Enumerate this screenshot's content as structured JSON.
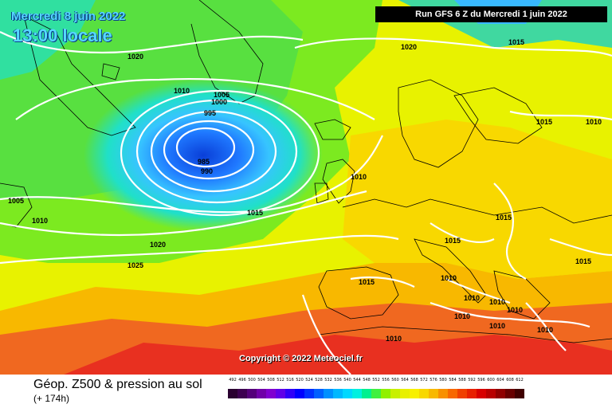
{
  "header": {
    "date": "Mercredi 8 juin 2022",
    "time": "13:00 locale",
    "run": "Run GFS 6 Z du Mercredi 1 juin 2022"
  },
  "copyright": "Copyright © 2022 Meteociel.fr",
  "footer": {
    "title": "Géop. Z500 & pression au sol",
    "subtitle": "(+ 174h)"
  },
  "legend": {
    "values": [
      "492",
      "496",
      "500",
      "504",
      "508",
      "512",
      "516",
      "520",
      "524",
      "528",
      "532",
      "536",
      "540",
      "544",
      "548",
      "552",
      "556",
      "560",
      "564",
      "568",
      "572",
      "576",
      "580",
      "584",
      "588",
      "592",
      "596",
      "600",
      "604",
      "608",
      "612"
    ],
    "colors": [
      "#2a0030",
      "#3d0050",
      "#55007a",
      "#7000a8",
      "#8000d0",
      "#6000e8",
      "#3000f8",
      "#0000ff",
      "#0030ff",
      "#0060ff",
      "#0090ff",
      "#00b8ff",
      "#00d8ff",
      "#00f0e0",
      "#00f090",
      "#40f040",
      "#90f000",
      "#c8f000",
      "#e8f000",
      "#f8f000",
      "#f8d800",
      "#f8b800",
      "#f89000",
      "#f86800",
      "#f04000",
      "#e82000",
      "#d80000",
      "#b80000",
      "#900000",
      "#680000",
      "#400000"
    ]
  },
  "isobar_labels": [
    "1020",
    "1015",
    "1020",
    "1010",
    "1005",
    "1000",
    "995",
    "985",
    "990",
    "1010",
    "1015",
    "1005",
    "1010",
    "1015",
    "1010",
    "1020",
    "1025",
    "1015",
    "1015",
    "1015",
    "1015",
    "1010",
    "1010",
    "1010",
    "1010",
    "1010",
    "1010",
    "1010"
  ]
}
